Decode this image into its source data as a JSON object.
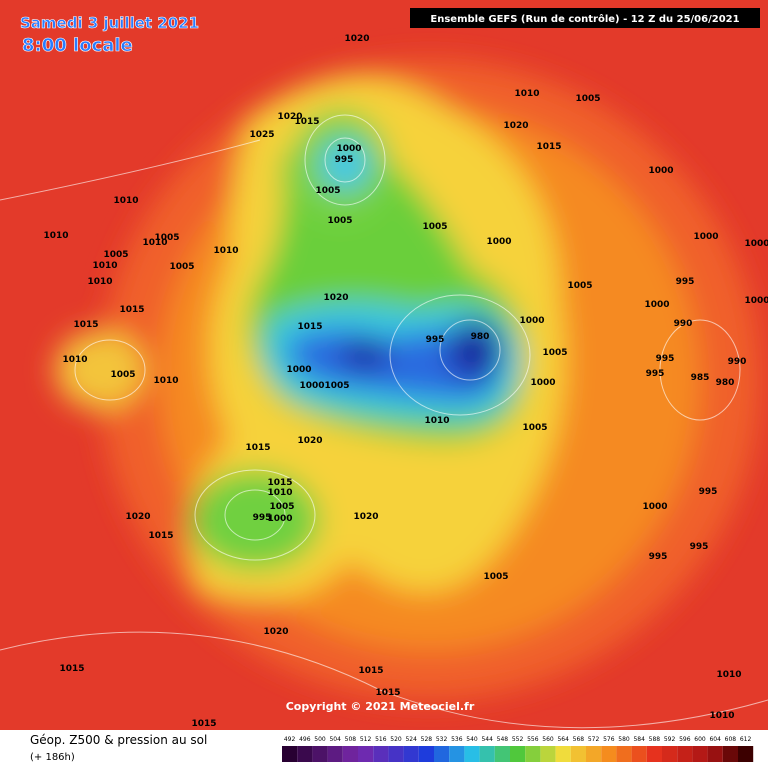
{
  "header": {
    "date": "Samedi 3 juillet 2021",
    "time": "8:00 locale",
    "run": "Ensemble GEFS  (Run de contrôle)  -  12 Z du 25/06/2021"
  },
  "map": {
    "copyright": "Copyright © 2021 Meteociel.fr",
    "isobar_labels": [
      "1020",
      "1010",
      "1005",
      "1020",
      "1015",
      "1025",
      "1020",
      "1015",
      "1000",
      "995",
      "1000",
      "1010",
      "1005",
      "1005",
      "1005",
      "1010",
      "1010",
      "1005",
      "1000",
      "1000",
      "1000",
      "1005",
      "1010",
      "1005",
      "1010",
      "995",
      "1005",
      "1010",
      "1000",
      "1020",
      "1000",
      "1015",
      "1015",
      "990",
      "1000",
      "1015",
      "995",
      "980",
      "1005",
      "995",
      "990",
      "1010",
      "1005",
      "1010",
      "995",
      "985",
      "980",
      "1000",
      "1000",
      "1000",
      "1005",
      "1010",
      "1005",
      "1015",
      "1020",
      "1015",
      "1010",
      "1005",
      "995",
      "1000",
      "995",
      "1000",
      "1020",
      "1020",
      "1015",
      "995",
      "995",
      "1005",
      "1020",
      "1015",
      "1015",
      "1010",
      "1015",
      "1015",
      "1010"
    ]
  },
  "legend": {
    "title": "Géop. Z500 & pression au sol",
    "lead": "(+ 186h)",
    "values": [
      492,
      496,
      500,
      504,
      508,
      512,
      516,
      520,
      524,
      528,
      532,
      536,
      540,
      544,
      548,
      552,
      556,
      560,
      564,
      568,
      572,
      576,
      580,
      584,
      588,
      592,
      596,
      600,
      604,
      608,
      612
    ]
  }
}
